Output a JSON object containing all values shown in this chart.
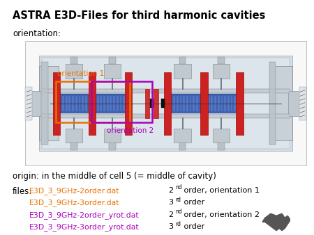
{
  "title": "ASTRA E3D-Files for third harmonic cavities",
  "title_fontsize": 10.5,
  "orientation_label": "orientation:",
  "orient1_label": "orientation 1",
  "orient2_label": "orientation 2",
  "orient1_color": "#E87000",
  "orient2_color": "#AA00BB",
  "origin_text": "origin: in the middle of cell 5 (= middle of cavity)",
  "files_label": "files:",
  "file_entries": [
    {
      "name": "E3D_3_9GHz-2order.dat",
      "color": "#E87000",
      "desc": "2",
      "sup": "nd",
      "desc2": " order, orientation 1"
    },
    {
      "name": "E3D_3_9GHz-3order.dat",
      "color": "#E87000",
      "desc": "3",
      "sup": "rd",
      "desc2": " order"
    },
    {
      "name": "E3D_3_9GHz-2order_yrot.dat",
      "color": "#AA00BB",
      "desc": "2",
      "sup": "nd",
      "desc2": " order, orientation 2"
    },
    {
      "name": "E3D_3_9GHz-3order_yrot.dat",
      "color": "#AA00BB",
      "desc": "3",
      "sup": "rd",
      "desc2": " order"
    }
  ],
  "bg_color": "#ffffff",
  "diagram_bg": "#e8ecf0",
  "diagram_bg2": "#f0f2f4"
}
